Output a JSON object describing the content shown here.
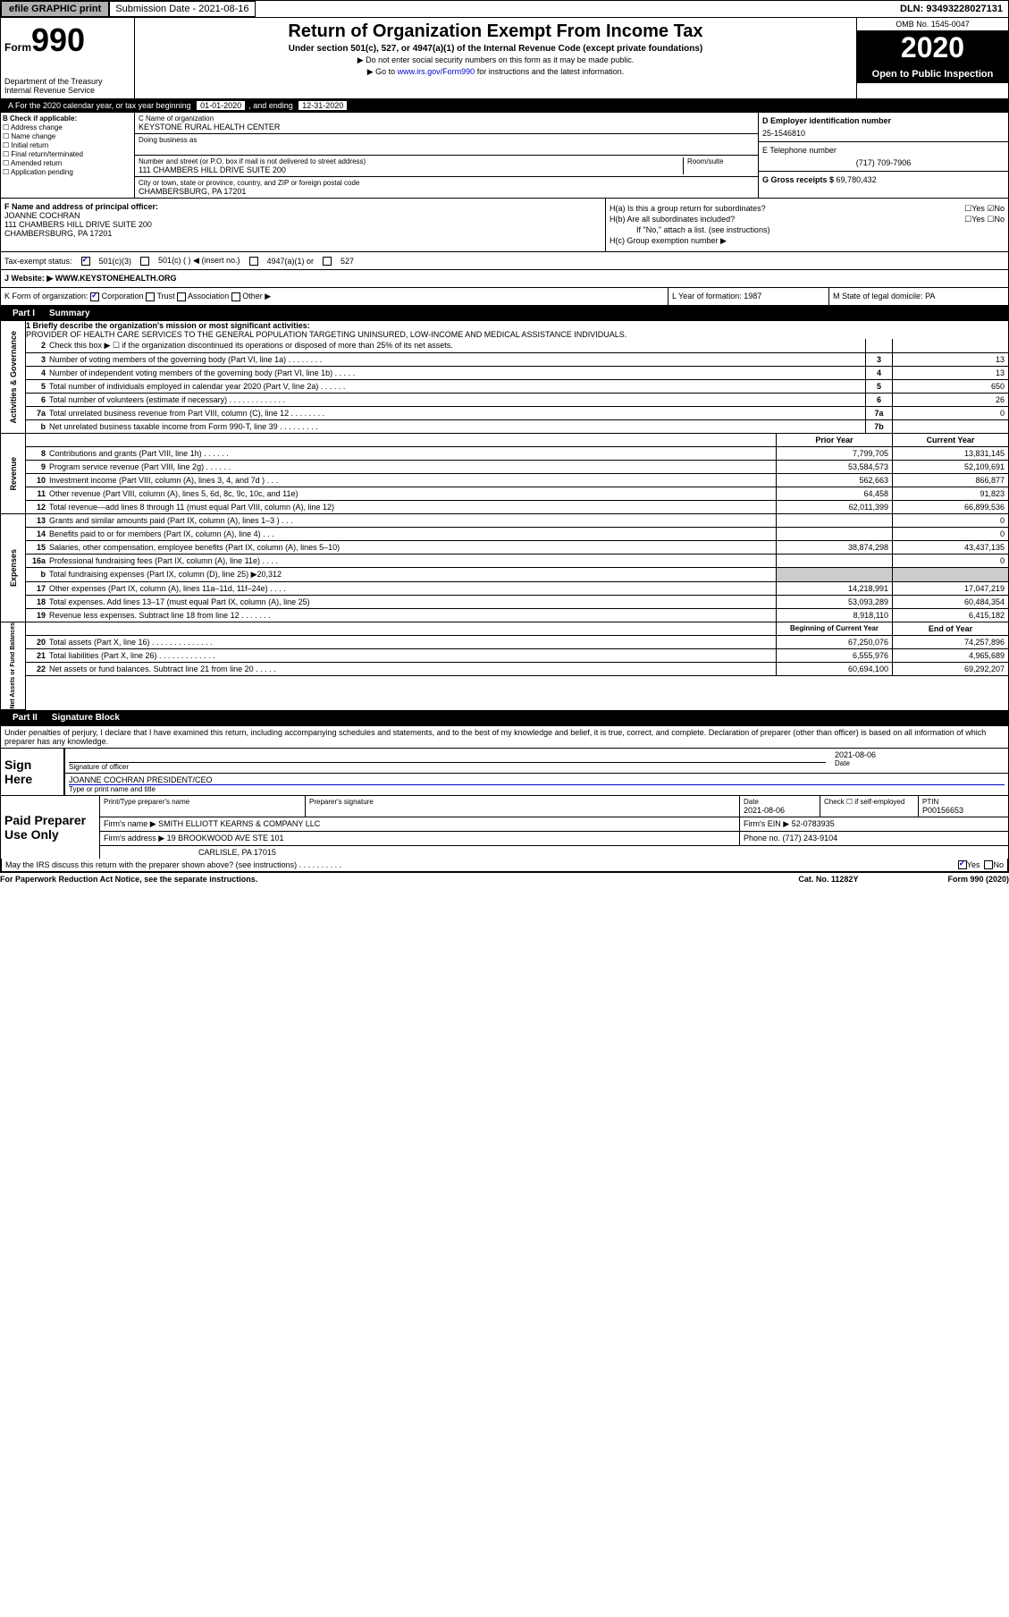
{
  "top": {
    "efile": "efile GRAPHIC print",
    "sub_label": "Submission Date - 2021-08-16",
    "dln": "DLN: 93493228027131"
  },
  "header": {
    "form_prefix": "Form",
    "form_num": "990",
    "title": "Return of Organization Exempt From Income Tax",
    "subtitle": "Under section 501(c), 527, or 4947(a)(1) of the Internal Revenue Code (except private foundations)",
    "note1": "▶ Do not enter social security numbers on this form as it may be made public.",
    "note2_pre": "▶ Go to ",
    "note2_link": "www.irs.gov/Form990",
    "note2_post": " for instructions and the latest information.",
    "dept": "Department of the Treasury\nInternal Revenue Service",
    "omb": "OMB No. 1545-0047",
    "year": "2020",
    "inspection": "Open to Public Inspection"
  },
  "tax_year": {
    "label_a": "A For the 2020 calendar year, or tax year beginning ",
    "begin": "01-01-2020",
    "mid": ", and ending ",
    "end": "12-31-2020"
  },
  "section_b": {
    "label": "B Check if applicable:",
    "opts": [
      "Address change",
      "Name change",
      "Initial return",
      "Final return/terminated",
      "Amended return",
      "Application pending"
    ],
    "c_label": "C Name of organization",
    "c_name": "KEYSTONE RURAL HEALTH CENTER",
    "dba_label": "Doing business as",
    "addr_label": "Number and street (or P.O. box if mail is not delivered to street address)",
    "room_label": "Room/suite",
    "addr": "111 CHAMBERS HILL DRIVE SUITE 200",
    "city_label": "City or town, state or province, country, and ZIP or foreign postal code",
    "city": "CHAMBERSBURG, PA  17201",
    "d_label": "D Employer identification number",
    "ein": "25-1546810",
    "e_label": "E Telephone number",
    "phone": "(717) 709-7906",
    "g_label": "G Gross receipts $ ",
    "gross": "69,780,432"
  },
  "section_f": {
    "label": "F Name and address of principal officer:",
    "name": "JOANNE COCHRAN",
    "addr1": "111 CHAMBERS HILL DRIVE SUITE 200",
    "addr2": "CHAMBERSBURG, PA  17201",
    "ha": "H(a) Is this a group return for subordinates?",
    "hb": "H(b) Are all subordinates included?",
    "hb_note": "If \"No,\" attach a list. (see instructions)",
    "hc": "H(c) Group exemption number ▶"
  },
  "tax_exempt": {
    "label": "Tax-exempt status:",
    "opt1": "501(c)(3)",
    "opt2": "501(c) (  ) ◀ (insert no.)",
    "opt3": "4947(a)(1) or",
    "opt4": "527"
  },
  "website": {
    "label": "J   Website: ▶",
    "url": "WWW.KEYSTONEHEALTH.ORG"
  },
  "form_org": {
    "k": "K Form of organization:",
    "k_opts": [
      "Corporation",
      "Trust",
      "Association",
      "Other ▶"
    ],
    "l_label": "L Year of formation: ",
    "l_val": "1987",
    "m_label": "M State of legal domicile: ",
    "m_val": "PA"
  },
  "part1": {
    "header": "Part I",
    "title": "Summary",
    "q1_label": "1   Briefly describe the organization's mission or most significant activities:",
    "q1_text": "PROVIDER OF HEALTH CARE SERVICES TO THE GENERAL POPULATION TARGETING UNINSURED, LOW-INCOME AND MEDICAL ASSISTANCE INDIVIDUALS.",
    "governance_label": "Activities & Governance",
    "rows_gov": [
      {
        "n": "2",
        "d": "Check this box ▶ ☐ if the organization discontinued its operations or disposed of more than 25% of its net assets.",
        "b": "",
        "v": ""
      },
      {
        "n": "3",
        "d": "Number of voting members of the governing body (Part VI, line 1a)  .    .    .    .    .    .    .    .",
        "b": "3",
        "v": "13"
      },
      {
        "n": "4",
        "d": "Number of independent voting members of the governing body (Part VI, line 1b)  .    .    .    .    .",
        "b": "4",
        "v": "13"
      },
      {
        "n": "5",
        "d": "Total number of individuals employed in calendar year 2020 (Part V, line 2a)  .    .    .    .    .    .",
        "b": "5",
        "v": "650"
      },
      {
        "n": "6",
        "d": "Total number of volunteers (estimate if necessary)  .    .    .    .    .    .    .    .    .    .    .    .    .",
        "b": "6",
        "v": "26"
      },
      {
        "n": "7a",
        "d": "Total unrelated business revenue from Part VIII, column (C), line 12  .    .    .    .    .    .    .    .",
        "b": "7a",
        "v": "0"
      },
      {
        "n": "b",
        "d": "Net unrelated business taxable income from Form 990-T, line 39  .    .    .    .    .    .    .    .    .",
        "b": "7b",
        "v": ""
      }
    ],
    "revenue_label": "Revenue",
    "col_prior": "Prior Year",
    "col_current": "Current Year",
    "rows_rev": [
      {
        "n": "8",
        "d": "Contributions and grants (Part VIII, line 1h)  .    .    .    .    .    .",
        "p": "7,799,705",
        "c": "13,831,145"
      },
      {
        "n": "9",
        "d": "Program service revenue (Part VIII, line 2g)  .    .    .    .    .    .",
        "p": "53,584,573",
        "c": "52,109,691"
      },
      {
        "n": "10",
        "d": "Investment income (Part VIII, column (A), lines 3, 4, and 7d )  .    .    .",
        "p": "562,663",
        "c": "866,877"
      },
      {
        "n": "11",
        "d": "Other revenue (Part VIII, column (A), lines 5, 6d, 8c, 9c, 10c, and 11e)",
        "p": "64,458",
        "c": "91,823"
      },
      {
        "n": "12",
        "d": "Total revenue—add lines 8 through 11 (must equal Part VIII, column (A), line 12)",
        "p": "62,011,399",
        "c": "66,899,536"
      }
    ],
    "expenses_label": "Expenses",
    "rows_exp": [
      {
        "n": "13",
        "d": "Grants and similar amounts paid (Part IX, column (A), lines 1–3 )  .    .    .",
        "p": "",
        "c": "0"
      },
      {
        "n": "14",
        "d": "Benefits paid to or for members (Part IX, column (A), line 4)  .    .    .",
        "p": "",
        "c": "0"
      },
      {
        "n": "15",
        "d": "Salaries, other compensation, employee benefits (Part IX, column (A), lines 5–10)",
        "p": "38,874,298",
        "c": "43,437,135"
      },
      {
        "n": "16a",
        "d": "Professional fundraising fees (Part IX, column (A), line 11e)  .    .    .    .",
        "p": "",
        "c": "0"
      },
      {
        "n": "b",
        "d": "Total fundraising expenses (Part IX, column (D), line 25) ▶20,312",
        "p": "gray",
        "c": "gray"
      },
      {
        "n": "17",
        "d": "Other expenses (Part IX, column (A), lines 11a–11d, 11f–24e)  .    .    .    .",
        "p": "14,218,991",
        "c": "17,047,219"
      },
      {
        "n": "18",
        "d": "Total expenses. Add lines 13–17 (must equal Part IX, column (A), line 25)",
        "p": "53,093,289",
        "c": "60,484,354"
      },
      {
        "n": "19",
        "d": "Revenue less expenses. Subtract line 18 from line 12  .    .    .    .    .    .    .",
        "p": "8,918,110",
        "c": "6,415,182"
      }
    ],
    "assets_label": "Net Assets or Fund Balances",
    "col_begin": "Beginning of Current Year",
    "col_end": "End of Year",
    "rows_assets": [
      {
        "n": "20",
        "d": "Total assets (Part X, line 16)  .    .    .    .    .    .    .    .    .    .    .    .    .    .",
        "p": "67,250,076",
        "c": "74,257,896"
      },
      {
        "n": "21",
        "d": "Total liabilities (Part X, line 26)  .    .    .    .    .    .    .    .    .    .    .    .    .",
        "p": "6,555,976",
        "c": "4,965,689"
      },
      {
        "n": "22",
        "d": "Net assets or fund balances. Subtract line 21 from line 20  .    .    .    .    .",
        "p": "60,694,100",
        "c": "69,292,207"
      }
    ]
  },
  "part2": {
    "header": "Part II",
    "title": "Signature Block",
    "declare": "Under penalties of perjury, I declare that I have examined this return, including accompanying schedules and statements, and to the best of my knowledge and belief, it is true, correct, and complete. Declaration of preparer (other than officer) is based on all information of which preparer has any knowledge.",
    "sign_here": "Sign Here",
    "sig_officer": "Signature of officer",
    "sig_date_label": "Date",
    "sig_date": "2021-08-06",
    "officer_name": "JOANNE COCHRAN  PRESIDENT/CEO",
    "officer_type": "Type or print name and title",
    "paid_prep": "Paid Preparer Use Only",
    "prep_name_label": "Print/Type preparer's name",
    "prep_sig_label": "Preparer's signature",
    "prep_date": "2021-08-06",
    "prep_date_label": "Date",
    "self_emp": "Check ☐ if self-employed",
    "ptin_label": "PTIN",
    "ptin": "P00156653",
    "firm_name_label": "Firm's name    ▶",
    "firm_name": "SMITH ELLIOTT KEARNS & COMPANY LLC",
    "firm_ein_label": "Firm's EIN ▶",
    "firm_ein": "52-0783935",
    "firm_addr_label": "Firm's address ▶",
    "firm_addr1": "19 BROOKWOOD AVE STE 101",
    "firm_addr2": "CARLISLE, PA  17015",
    "firm_phone_label": "Phone no. ",
    "firm_phone": "(717) 243-9104",
    "discuss": "May the IRS discuss this return with the preparer shown above? (see instructions)  .    .    .    .    .    .    .    .    .    .",
    "yes": "Yes",
    "no": "No"
  },
  "bottom": {
    "paperwork": "For Paperwork Reduction Act Notice, see the separate instructions.",
    "cat": "Cat. No. 11282Y",
    "form": "Form 990 (2020)"
  }
}
